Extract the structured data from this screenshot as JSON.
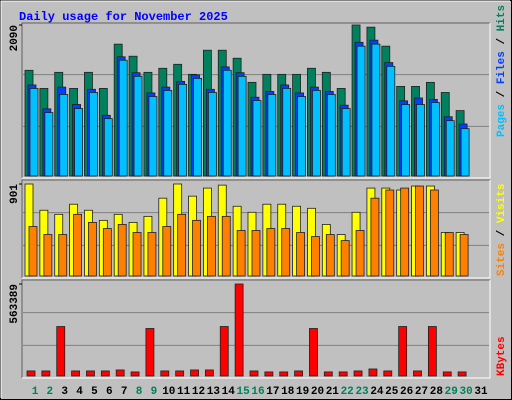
{
  "chart_data": [
    {
      "type": "bar",
      "title": "Daily usage for November 2025",
      "ylim": [
        0,
        2090
      ],
      "yticks": [
        2090
      ],
      "legend_separator": " / ",
      "series": [
        {
          "name": "Hits",
          "color": "#00805c",
          "values": [
            1463,
            1212,
            1435,
            1212,
            1435,
            1212,
            1825,
            1658,
            1435,
            1491,
            1546,
            1407,
            1741,
            1741,
            1630,
            1296,
            1407,
            1407,
            1407,
            1491,
            1435,
            1212,
            2090,
            2060,
            1797,
            1240,
            1240,
            1296,
            1156,
            905,
            0
          ]
        },
        {
          "name": "Files",
          "color": "#0040ff",
          "values": [
            1260,
            930,
            1230,
            990,
            1200,
            840,
            1650,
            1430,
            1150,
            1230,
            1310,
            1400,
            1200,
            1510,
            1430,
            1090,
            1170,
            1260,
            1150,
            1230,
            1170,
            980,
            1850,
            1880,
            1570,
            1040,
            1080,
            1060,
            820,
            720,
            0
          ]
        },
        {
          "name": "Pages",
          "color": "#00c0ff",
          "values": [
            1212,
            878,
            1128,
            933,
            1156,
            794,
            1602,
            1379,
            1100,
            1184,
            1268,
            1351,
            1156,
            1463,
            1379,
            1045,
            1128,
            1212,
            1100,
            1184,
            1128,
            933,
            1797,
            1825,
            1518,
            989,
            989,
            1017,
            766,
            655,
            0
          ]
        }
      ]
    },
    {
      "type": "bar",
      "ylim": [
        0,
        901
      ],
      "yticks": [
        901
      ],
      "legend_separator": " / ",
      "series": [
        {
          "name": "Visits",
          "color": "#ffff00",
          "values": [
            901,
            644,
            604,
            703,
            644,
            545,
            604,
            525,
            584,
            762,
            901,
            782,
            861,
            890,
            683,
            624,
            703,
            703,
            683,
            663,
            505,
            406,
            624,
            861,
            861,
            842,
            881,
            881,
            426,
            426,
            0
          ]
        },
        {
          "name": "Sites",
          "color": "#ff8000",
          "values": [
            485,
            406,
            406,
            604,
            525,
            465,
            505,
            426,
            426,
            485,
            604,
            545,
            584,
            584,
            446,
            446,
            465,
            465,
            426,
            386,
            406,
            347,
            446,
            762,
            842,
            861,
            881,
            842,
            426,
            406,
            0
          ]
        }
      ]
    },
    {
      "type": "bar",
      "ylim": [
        0,
        563389
      ],
      "yticks": [
        563389
      ],
      "categories": [
        "1",
        "2",
        "3",
        "4",
        "5",
        "6",
        "7",
        "8",
        "9",
        "10",
        "11",
        "12",
        "13",
        "14",
        "15",
        "16",
        "17",
        "18",
        "19",
        "20",
        "21",
        "22",
        "23",
        "24",
        "25",
        "26",
        "27",
        "28",
        "29",
        "30",
        "31"
      ],
      "category_colors": [
        "#00805c",
        "#00805c",
        "#000000",
        "#000000",
        "#000000",
        "#000000",
        "#000000",
        "#00805c",
        "#00805c",
        "#000000",
        "#000000",
        "#000000",
        "#000000",
        "#000000",
        "#00805c",
        "#00805c",
        "#000000",
        "#000000",
        "#000000",
        "#000000",
        "#000000",
        "#00805c",
        "#00805c",
        "#000000",
        "#000000",
        "#000000",
        "#000000",
        "#000000",
        "#00805c",
        "#00805c",
        "#000000"
      ],
      "series": [
        {
          "name": "KBytes",
          "color": "#ff0000",
          "values": [
            31000,
            31000,
            303000,
            31000,
            31000,
            31000,
            37000,
            25000,
            291000,
            31000,
            31000,
            37000,
            37000,
            303000,
            563389,
            31000,
            25000,
            25000,
            31000,
            291000,
            25000,
            25000,
            31000,
            43000,
            31000,
            303000,
            31000,
            303000,
            25000,
            25000,
            0
          ]
        }
      ]
    }
  ]
}
